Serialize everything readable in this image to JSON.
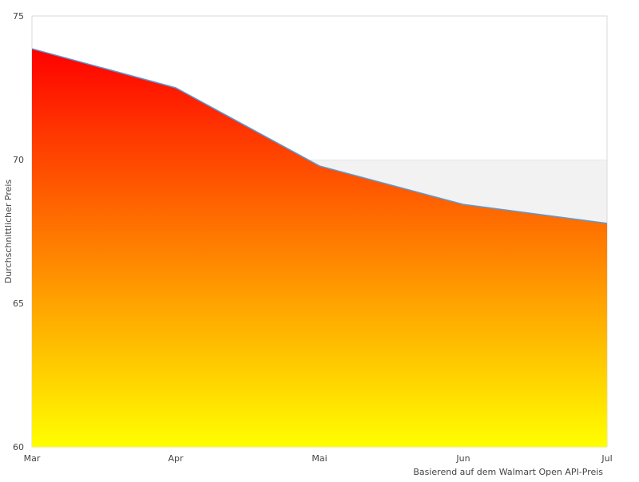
{
  "chart_data": {
    "type": "area",
    "title": "",
    "xlabel": "Basierend auf dem Walmart Open API-Preis",
    "ylabel": "Durchschnittlicher Preis",
    "categories": [
      "Mar",
      "Apr",
      "Mai",
      "Jun",
      "Jul"
    ],
    "values": [
      73.86,
      72.5,
      69.78,
      68.44,
      67.78
    ],
    "ylim": [
      60,
      75
    ],
    "yticks": [
      60,
      65,
      70,
      75
    ],
    "grid": "alternating horizontal bands",
    "legend": "none",
    "colors": {
      "line": "#5b9bd5",
      "fill_top": "#ff0000",
      "fill_bottom": "#ffff00",
      "band": "#f2f2f2",
      "border": "#d9d9d9"
    }
  }
}
